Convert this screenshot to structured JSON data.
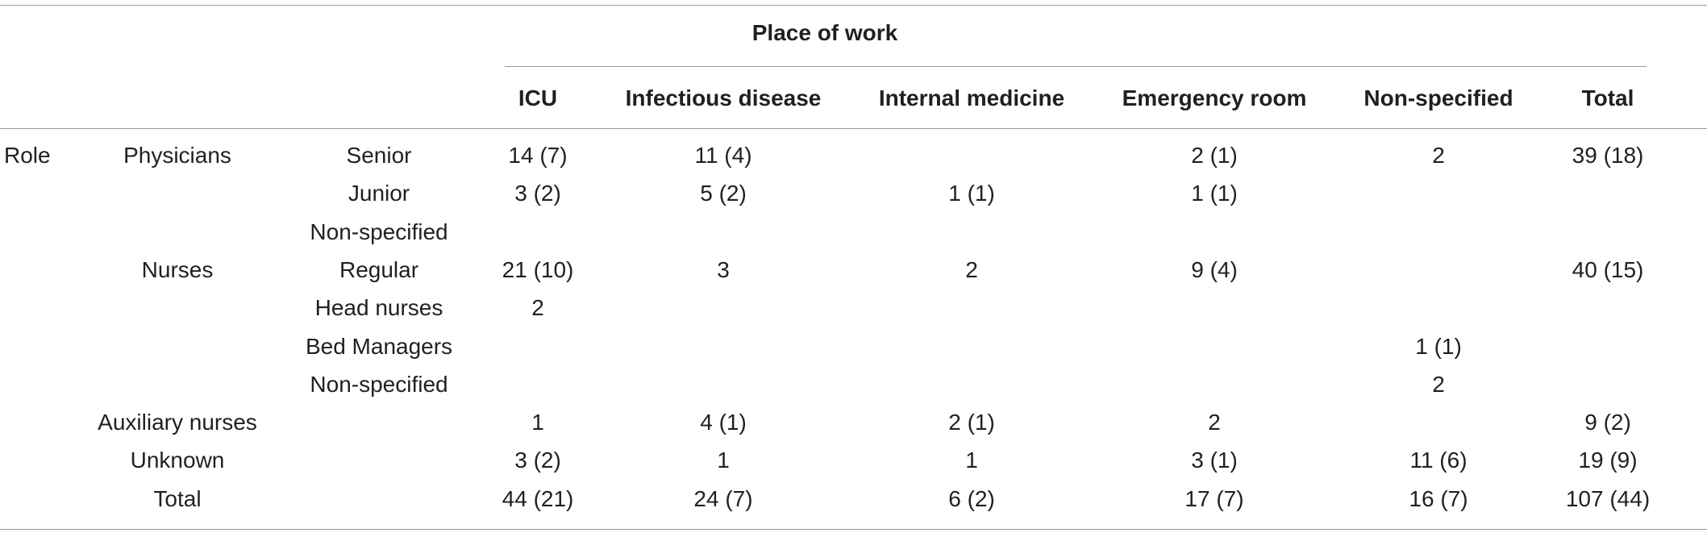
{
  "table": {
    "spanning_header": "Place of work",
    "columns": [
      "ICU",
      "Infectious disease",
      "Internal medicine",
      "Emergency room",
      "Non-specified",
      "Total"
    ],
    "stub_group_label": "Role",
    "rows": [
      {
        "role": "Physicians",
        "sub": "Senior",
        "cells": [
          "14 (7)",
          "11 (4)",
          "",
          "2 (1)",
          "2",
          "39 (18)"
        ]
      },
      {
        "role": "",
        "sub": "Junior",
        "cells": [
          "3 (2)",
          "5 (2)",
          "1 (1)",
          "1 (1)",
          "",
          ""
        ]
      },
      {
        "role": "",
        "sub": "Non-specified",
        "cells": [
          "",
          "",
          "",
          "",
          "",
          ""
        ]
      },
      {
        "role": "Nurses",
        "sub": "Regular",
        "cells": [
          "21 (10)",
          "3",
          "2",
          "9 (4)",
          "",
          "40 (15)"
        ]
      },
      {
        "role": "",
        "sub": "Head nurses",
        "cells": [
          "2",
          "",
          "",
          "",
          "",
          ""
        ]
      },
      {
        "role": "",
        "sub": "Bed Managers",
        "cells": [
          "",
          "",
          "",
          "",
          "1 (1)",
          ""
        ]
      },
      {
        "role": "",
        "sub": "Non-specified",
        "cells": [
          "",
          "",
          "",
          "",
          "2",
          ""
        ]
      },
      {
        "role": "Auxiliary nurses",
        "sub": "",
        "cells": [
          "1",
          "4 (1)",
          "2 (1)",
          "2",
          "",
          "9 (2)"
        ]
      },
      {
        "role": "Unknown",
        "sub": "",
        "cells": [
          "3 (2)",
          "1",
          "1",
          "3 (1)",
          "11 (6)",
          "19 (9)"
        ]
      },
      {
        "role": "Total",
        "sub": "",
        "cells": [
          "44 (21)",
          "24 (7)",
          "6 (2)",
          "17 (7)",
          "16 (7)",
          "107 (44)"
        ]
      }
    ]
  }
}
